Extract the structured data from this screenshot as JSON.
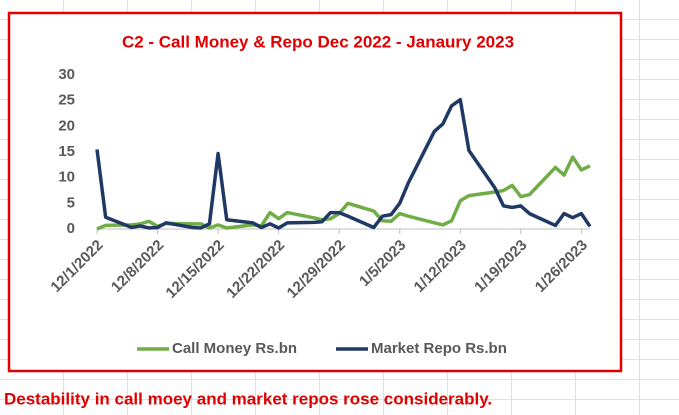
{
  "chart_data": {
    "type": "line",
    "title": "C2 - Call Money & Repo Dec 2022 - Janaury 2023",
    "annotation": "Destability in call moey and market repos rose considerably.",
    "x": [
      "12/1/2022",
      "12/2/2022",
      "12/5/2022",
      "12/6/2022",
      "12/7/2022",
      "12/8/2022",
      "12/9/2022",
      "12/12/2022",
      "12/13/2022",
      "12/14/2022",
      "12/15/2022",
      "12/16/2022",
      "12/19/2022",
      "12/20/2022",
      "12/21/2022",
      "12/22/2022",
      "12/23/2022",
      "12/26/2022",
      "12/27/2022",
      "12/28/2022",
      "12/29/2022",
      "12/30/2022",
      "1/2/2023",
      "1/3/2023",
      "1/4/2023",
      "1/5/2023",
      "1/6/2023",
      "1/9/2023",
      "1/10/2023",
      "1/11/2023",
      "1/12/2023",
      "1/13/2023",
      "1/16/2023",
      "1/17/2023",
      "1/18/2023",
      "1/19/2023",
      "1/20/2023",
      "1/23/2023",
      "1/24/2023",
      "1/25/2023",
      "1/26/2023",
      "1/27/2023"
    ],
    "series": [
      {
        "name": "Call Money Rs.bn",
        "color": "#70ad47",
        "values": [
          0,
          0.7,
          0.8,
          1.0,
          1.5,
          0.5,
          1.1,
          1.0,
          1.0,
          0.2,
          0.8,
          0.2,
          0.8,
          0.6,
          3.2,
          2.0,
          3.2,
          2.2,
          1.8,
          2.0,
          3.0,
          5.0,
          3.5,
          1.6,
          1.5,
          3.0,
          2.5,
          1.2,
          0.8,
          1.6,
          5.5,
          6.5,
          7.2,
          7.5,
          8.5,
          6.3,
          6.7,
          12.0,
          10.5,
          14.0,
          11.5,
          12.3
        ]
      },
      {
        "name": "Market Repo Rs.bn",
        "color": "#203864",
        "values": [
          15.5,
          2.3,
          0.3,
          0.6,
          0.2,
          0.3,
          1.2,
          0.3,
          0.2,
          1.0,
          14.7,
          1.8,
          1.2,
          0.3,
          1.0,
          0.2,
          1.2,
          1.3,
          1.4,
          3.2,
          3.2,
          2.5,
          0.3,
          2.5,
          2.8,
          5.0,
          9.0,
          19.0,
          20.5,
          24.0,
          25.2,
          15.3,
          8.0,
          4.5,
          4.2,
          4.5,
          3.0,
          0.7,
          3.0,
          2.2,
          3.0,
          0.5
        ]
      }
    ],
    "xlim": [
      "12/1/2022",
      "1/27/2023"
    ],
    "xticks": [
      "12/1/2022",
      "12/8/2022",
      "12/15/2022",
      "12/22/2022",
      "12/29/2022",
      "1/5/2023",
      "1/12/2023",
      "1/19/2023",
      "1/26/2023"
    ],
    "ylim": [
      0,
      30
    ],
    "yticks": [
      0,
      5,
      10,
      15,
      20,
      25,
      30
    ],
    "grid": false,
    "legend": "bottom"
  }
}
